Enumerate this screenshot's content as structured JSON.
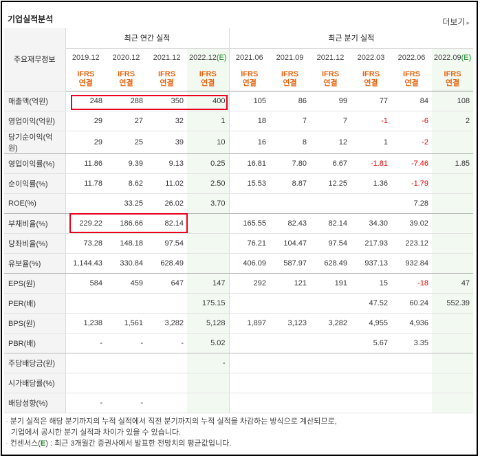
{
  "header": {
    "title": "기업실적분석",
    "more_label": "더보기",
    "more_arrow": "▸"
  },
  "table": {
    "row_header_label": "주요재무정보",
    "annual_group_label": "최근 연간 실적",
    "quarter_group_label": "최근 분기 실적",
    "periods": [
      {
        "label": "2019.12",
        "std": "IFRS",
        "basis": "연결"
      },
      {
        "label": "2020.12",
        "std": "IFRS",
        "basis": "연결"
      },
      {
        "label": "2021.12",
        "std": "IFRS",
        "basis": "연결"
      },
      {
        "label": "2022.12",
        "suffix": "(E)",
        "std": "IFRS",
        "basis": "연결"
      },
      {
        "label": "2021.06",
        "std": "IFRS",
        "basis": "연결"
      },
      {
        "label": "2021.09",
        "std": "IFRS",
        "basis": "연결"
      },
      {
        "label": "2021.12",
        "std": "IFRS",
        "basis": "연결"
      },
      {
        "label": "2022.03",
        "std": "IFRS",
        "basis": "연결"
      },
      {
        "label": "2022.06",
        "std": "IFRS",
        "basis": "연결"
      },
      {
        "label": "2022.09",
        "suffix": "(E)",
        "std": "IFRS",
        "basis": "연결"
      }
    ],
    "rows": [
      {
        "label": "매출액(억원)",
        "values": [
          "248",
          "288",
          "350",
          "400",
          "105",
          "86",
          "99",
          "77",
          "84",
          "108"
        ]
      },
      {
        "label": "영업이익(억원)",
        "values": [
          "29",
          "27",
          "32",
          "1",
          "18",
          "7",
          "7",
          "-1",
          "-6",
          "2"
        ]
      },
      {
        "label": "당기순이익(억원)",
        "values": [
          "29",
          "25",
          "39",
          "10",
          "16",
          "8",
          "12",
          "1",
          "-2",
          ""
        ]
      },
      {
        "label": "영업이익률(%)",
        "values": [
          "11.86",
          "9.39",
          "9.13",
          "0.25",
          "16.81",
          "7.80",
          "6.67",
          "-1.81",
          "-7.46",
          "1.85"
        ]
      },
      {
        "label": "순이익률(%)",
        "values": [
          "11.78",
          "8.62",
          "11.02",
          "2.50",
          "15.53",
          "8.87",
          "12.25",
          "1.36",
          "-1.79",
          ""
        ]
      },
      {
        "label": "ROE(%)",
        "values": [
          "",
          "33.25",
          "26.02",
          "3.70",
          "",
          "",
          "",
          "",
          "7.28",
          ""
        ]
      },
      {
        "label": "부채비율(%)",
        "values": [
          "229.22",
          "186.66",
          "82.14",
          "",
          "165.55",
          "82.43",
          "82.14",
          "34.30",
          "39.02",
          ""
        ]
      },
      {
        "label": "당좌비율(%)",
        "values": [
          "73.28",
          "148.18",
          "97.54",
          "",
          "76.21",
          "104.47",
          "97.54",
          "217.93",
          "223.12",
          ""
        ]
      },
      {
        "label": "유보율(%)",
        "values": [
          "1,144.43",
          "330.84",
          "628.49",
          "",
          "406.09",
          "587.97",
          "628.49",
          "937.13",
          "932.84",
          ""
        ]
      },
      {
        "label": "EPS(원)",
        "values": [
          "584",
          "459",
          "647",
          "147",
          "292",
          "121",
          "191",
          "15",
          "-18",
          "47"
        ]
      },
      {
        "label": "PER(배)",
        "values": [
          "",
          "",
          "",
          "175.15",
          "",
          "",
          "",
          "47.52",
          "60.24",
          "552.39"
        ]
      },
      {
        "label": "BPS(원)",
        "values": [
          "1,238",
          "1,561",
          "3,282",
          "5,128",
          "1,897",
          "3,123",
          "3,282",
          "4,955",
          "4,936",
          ""
        ]
      },
      {
        "label": "PBR(배)",
        "values": [
          "-",
          "-",
          "-",
          "5.02",
          "",
          "",
          "",
          "5.67",
          "3.35",
          ""
        ]
      },
      {
        "label": "주당배당금(원)",
        "values": [
          "",
          "",
          "",
          "-",
          "",
          "",
          "",
          "",
          "",
          ""
        ]
      },
      {
        "label": "시가배당률(%)",
        "values": [
          "",
          "",
          "",
          "",
          "",
          "",
          "",
          "",
          "",
          ""
        ]
      },
      {
        "label": "배당성향(%)",
        "values": [
          "-",
          "-",
          "",
          "",
          "",
          "",
          "",
          "",
          "",
          ""
        ]
      }
    ]
  },
  "notes": {
    "line1": "분기 실적은 해당 분기까지의 누적 실적에서 직전 분기까지의 누적 실적을 차감하는 방식으로 계산되므로,",
    "line2": "기업에서 공시한 분기 실적과 차이가 있을 수 있습니다.",
    "line3_prefix": "컨센서스(",
    "line3_e": "E",
    "line3_suffix": ") : 최근 3개월간 증권사에서 발표한 전망치의 평균값입니다.",
    "bullet": "·"
  },
  "colors": {
    "ifrs": "#e8620b",
    "negative": "#e60000",
    "estimate_bg": "#f2f9f1",
    "highlight": "#e8001c"
  }
}
